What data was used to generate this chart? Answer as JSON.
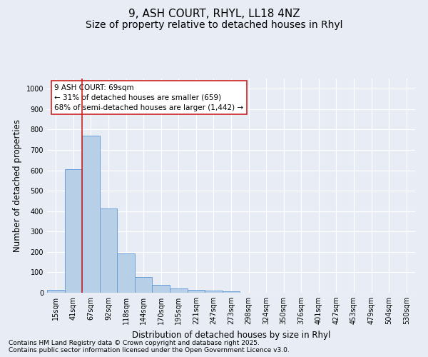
{
  "title1": "9, ASH COURT, RHYL, LL18 4NZ",
  "title2": "Size of property relative to detached houses in Rhyl",
  "xlabel": "Distribution of detached houses by size in Rhyl",
  "ylabel": "Number of detached properties",
  "categories": [
    "15sqm",
    "41sqm",
    "67sqm",
    "92sqm",
    "118sqm",
    "144sqm",
    "170sqm",
    "195sqm",
    "221sqm",
    "247sqm",
    "273sqm",
    "298sqm",
    "324sqm",
    "350sqm",
    "376sqm",
    "401sqm",
    "427sqm",
    "453sqm",
    "479sqm",
    "504sqm",
    "530sqm"
  ],
  "values": [
    15,
    607,
    770,
    413,
    192,
    78,
    37,
    20,
    15,
    10,
    7,
    0,
    0,
    0,
    0,
    0,
    0,
    0,
    0,
    0,
    0
  ],
  "bar_color": "#b8cfe8",
  "bar_edge_color": "#6a9fd8",
  "vline_x": 1.5,
  "vline_color": "#cc2222",
  "annotation_text": "9 ASH COURT: 69sqm\n← 31% of detached houses are smaller (659)\n68% of semi-detached houses are larger (1,442) →",
  "annotation_box_color": "#ffffff",
  "annotation_box_edge_color": "#cc2222",
  "ylim": [
    0,
    1050
  ],
  "yticks": [
    0,
    100,
    200,
    300,
    400,
    500,
    600,
    700,
    800,
    900,
    1000
  ],
  "background_color": "#e8edf5",
  "grid_color": "#ffffff",
  "footer1": "Contains HM Land Registry data © Crown copyright and database right 2025.",
  "footer2": "Contains public sector information licensed under the Open Government Licence v3.0.",
  "title1_fontsize": 11,
  "title2_fontsize": 10,
  "axis_label_fontsize": 8.5,
  "tick_fontsize": 7,
  "annotation_fontsize": 7.5,
  "footer_fontsize": 6.5
}
